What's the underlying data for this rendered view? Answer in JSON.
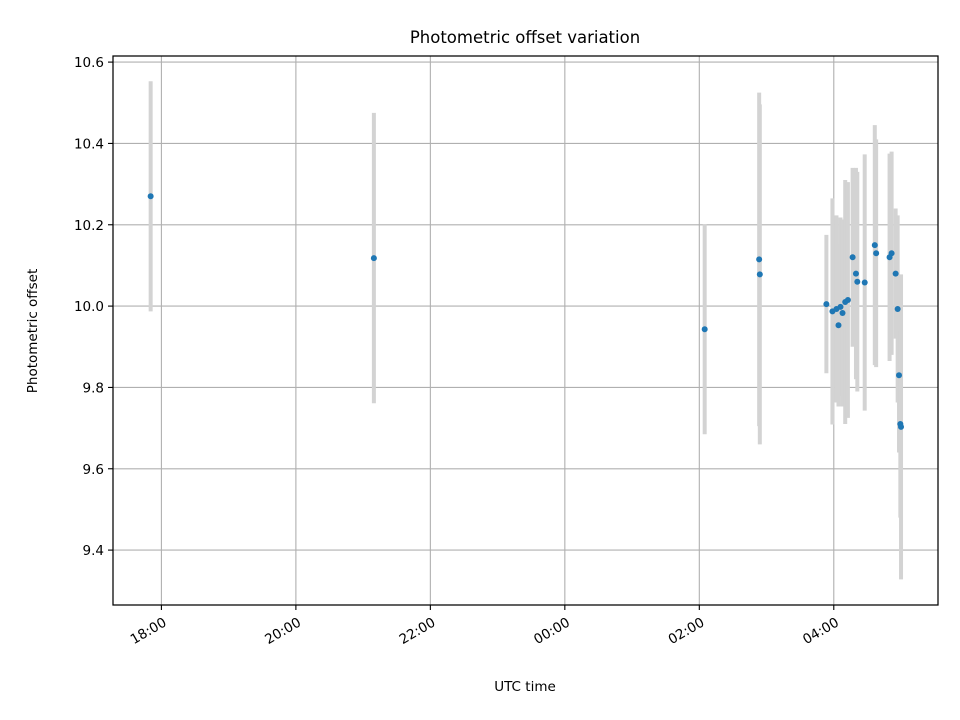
{
  "chart_data": {
    "type": "scatter",
    "title": "Photometric offset variation",
    "xlabel": "UTC time",
    "ylabel": "Photometric offset",
    "x_unit": "hours (UTC, relative to the 00:00 tick)",
    "xlim": [
      -6.72,
      5.55
    ],
    "ylim": [
      9.265,
      10.615
    ],
    "xticks": [
      -6,
      -4,
      -2,
      0,
      2,
      4
    ],
    "xtick_labels": [
      "18:00",
      "20:00",
      "22:00",
      "00:00",
      "02:00",
      "04:00"
    ],
    "yticks": [
      9.4,
      9.6,
      9.8,
      10.0,
      10.2,
      10.4,
      10.6
    ],
    "ytick_labels": [
      "9.4",
      "9.6",
      "9.8",
      "10.0",
      "10.2",
      "10.4",
      "10.6"
    ],
    "grid": true,
    "marker_color": "#1f77b4",
    "errorbar_color": "#d3d3d3",
    "points": [
      {
        "x": -6.16,
        "y": 10.27,
        "err": 0.283
      },
      {
        "x": -2.84,
        "y": 10.118,
        "err": 0.357
      },
      {
        "x": 2.08,
        "y": 9.943,
        "err": 0.258
      },
      {
        "x": 2.89,
        "y": 10.115,
        "err": 0.41
      },
      {
        "x": 2.9,
        "y": 10.078,
        "err": 0.418
      },
      {
        "x": 3.89,
        "y": 10.005,
        "err": 0.17
      },
      {
        "x": 3.98,
        "y": 9.987,
        "err": 0.278
      },
      {
        "x": 4.04,
        "y": 9.993,
        "err": 0.23
      },
      {
        "x": 4.07,
        "y": 9.953,
        "err": 0.2
      },
      {
        "x": 4.1,
        "y": 9.998,
        "err": 0.22
      },
      {
        "x": 4.13,
        "y": 9.983,
        "err": 0.23
      },
      {
        "x": 4.17,
        "y": 10.01,
        "err": 0.3
      },
      {
        "x": 4.21,
        "y": 10.015,
        "err": 0.29
      },
      {
        "x": 4.28,
        "y": 10.12,
        "err": 0.22
      },
      {
        "x": 4.33,
        "y": 10.08,
        "err": 0.26
      },
      {
        "x": 4.35,
        "y": 10.06,
        "err": 0.27
      },
      {
        "x": 4.46,
        "y": 10.058,
        "err": 0.315
      },
      {
        "x": 4.61,
        "y": 10.15,
        "err": 0.295
      },
      {
        "x": 4.63,
        "y": 10.13,
        "err": 0.28
      },
      {
        "x": 4.83,
        "y": 10.12,
        "err": 0.255
      },
      {
        "x": 4.86,
        "y": 10.13,
        "err": 0.25
      },
      {
        "x": 4.92,
        "y": 10.08,
        "err": 0.16
      },
      {
        "x": 4.95,
        "y": 9.993,
        "err": 0.23
      },
      {
        "x": 4.97,
        "y": 9.83,
        "err": 0.19
      },
      {
        "x": 4.99,
        "y": 9.71,
        "err": 0.23
      },
      {
        "x": 5.0,
        "y": 9.703,
        "err": 0.375
      }
    ]
  }
}
